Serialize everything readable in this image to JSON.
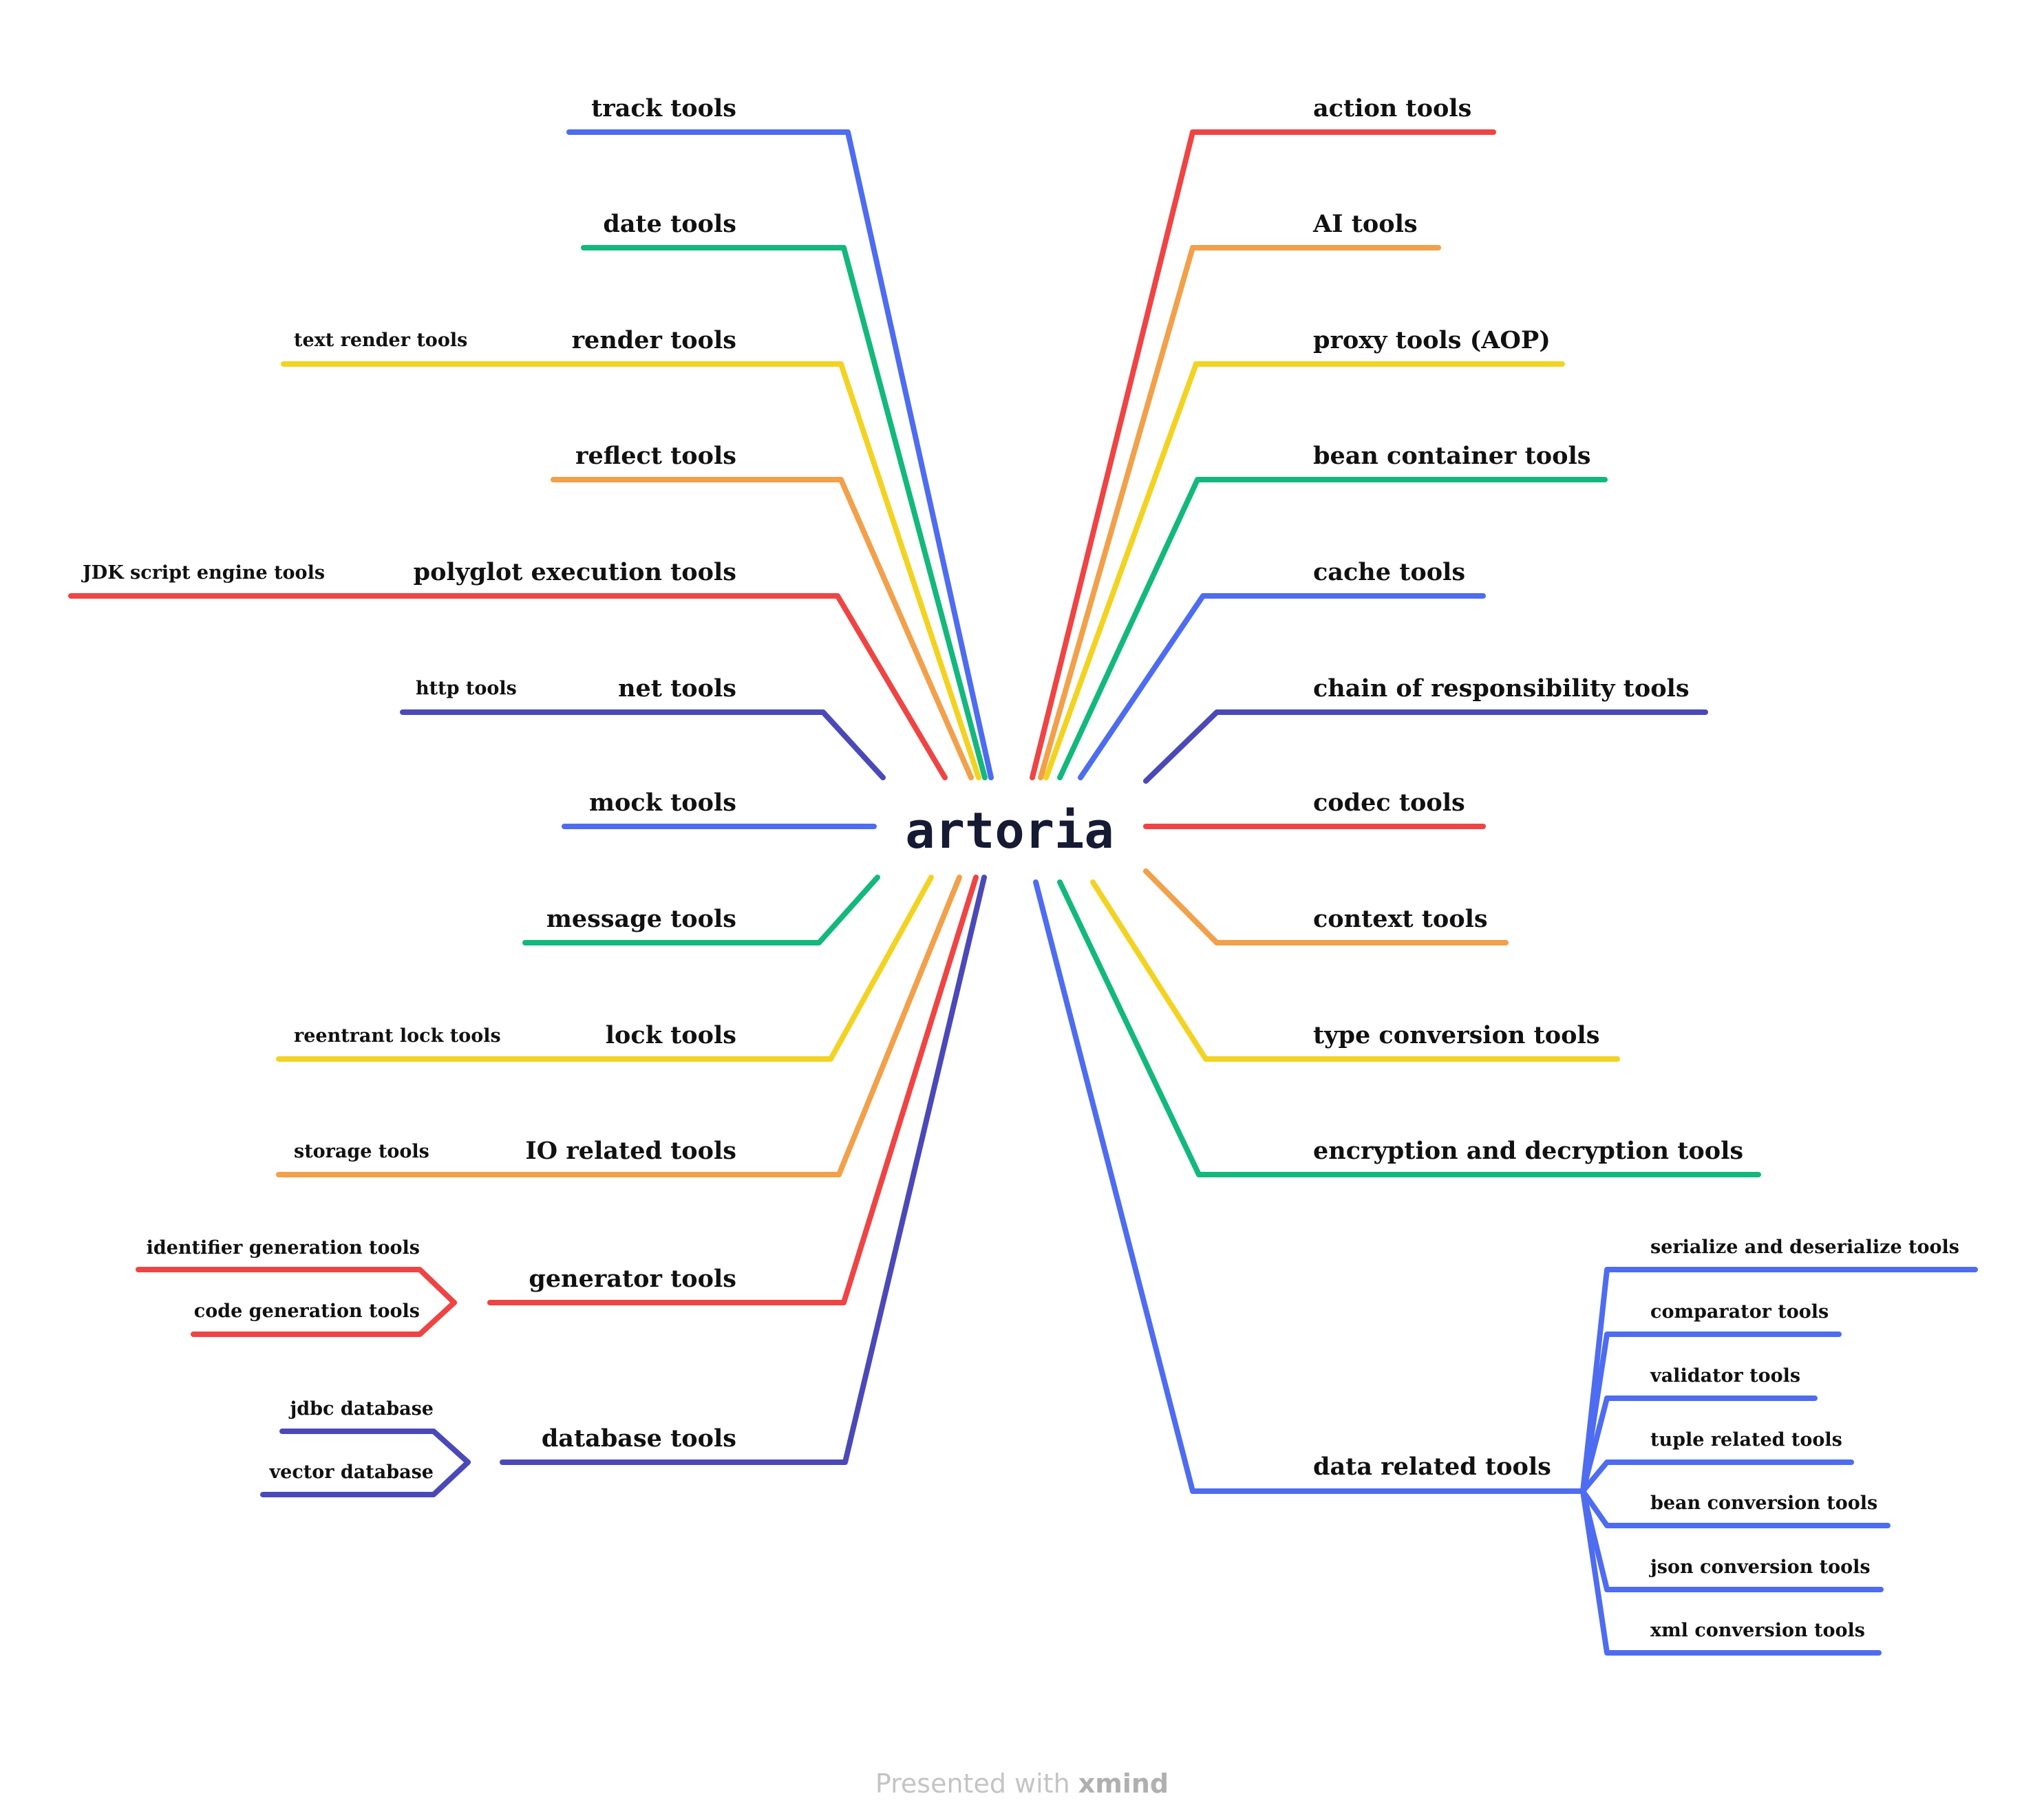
{
  "central_topic": "artoria",
  "colors": {
    "red": "#ef4444",
    "orange": "#f2a04a",
    "yellow": "#f2d322",
    "green": "#13b87c",
    "blue": "#4e6cf0",
    "indigo": "#4b49b8",
    "text": "#111111",
    "center_text": "#161a33"
  },
  "left_branches": [
    {
      "label": "track tools",
      "color": "blue",
      "children": []
    },
    {
      "label": "date tools",
      "color": "green",
      "children": []
    },
    {
      "label": "render tools",
      "color": "yellow",
      "children": [
        {
          "label": "text render tools",
          "text_color": "#5a4a00"
        }
      ]
    },
    {
      "label": "reflect tools",
      "color": "orange",
      "children": []
    },
    {
      "label": "polyglot execution tools",
      "color": "red",
      "children": [
        {
          "label": "JDK script engine tools",
          "text_color": "#7a0f0f"
        }
      ]
    },
    {
      "label": "net tools",
      "color": "indigo",
      "children": [
        {
          "label": "http tools",
          "text_color": "#1a1a5e"
        }
      ]
    },
    {
      "label": "mock tools",
      "color": "blue",
      "children": []
    },
    {
      "label": "message tools",
      "color": "green",
      "children": []
    },
    {
      "label": "lock tools",
      "color": "yellow",
      "children": [
        {
          "label": "reentrant lock tools",
          "text_color": "#5a4a00"
        }
      ]
    },
    {
      "label": "IO related tools",
      "color": "orange",
      "children": [
        {
          "label": "storage tools",
          "text_color": "#5a2f00"
        }
      ]
    },
    {
      "label": "generator tools",
      "color": "red",
      "children": [
        {
          "label": "identifier generation tools",
          "text_color": "#7a0f0f"
        },
        {
          "label": "code generation tools",
          "text_color": "#7a0f0f"
        }
      ]
    },
    {
      "label": "database tools",
      "color": "indigo",
      "children": [
        {
          "label": "jdbc database",
          "text_color": "#1a1a5e"
        },
        {
          "label": "vector database",
          "text_color": "#1a1a5e"
        }
      ]
    }
  ],
  "right_branches": [
    {
      "label": "action tools",
      "color": "red",
      "children": []
    },
    {
      "label": "AI tools",
      "color": "orange",
      "children": []
    },
    {
      "label": "proxy tools (AOP)",
      "color": "yellow",
      "children": []
    },
    {
      "label": "bean container tools",
      "color": "green",
      "children": []
    },
    {
      "label": "cache tools",
      "color": "blue",
      "children": []
    },
    {
      "label": "chain of responsibility tools",
      "color": "indigo",
      "children": []
    },
    {
      "label": "codec tools",
      "color": "red",
      "children": []
    },
    {
      "label": "context tools",
      "color": "orange",
      "children": []
    },
    {
      "label": "type conversion tools",
      "color": "yellow",
      "children": []
    },
    {
      "label": "encryption and decryption tools",
      "color": "green",
      "children": []
    },
    {
      "label": "data related tools",
      "color": "blue",
      "children": [
        {
          "label": "serialize and deserialize tools",
          "text_color": "#10185e"
        },
        {
          "label": "comparator tools",
          "text_color": "#10185e"
        },
        {
          "label": "validator tools",
          "text_color": "#10185e"
        },
        {
          "label": "tuple related tools",
          "text_color": "#10185e"
        },
        {
          "label": "bean conversion tools",
          "text_color": "#10185e"
        },
        {
          "label": "json conversion tools",
          "text_color": "#10185e"
        },
        {
          "label": "xml conversion tools",
          "text_color": "#10185e"
        }
      ]
    }
  ],
  "watermark": {
    "prefix": "Presented with ",
    "brand": "xmind"
  }
}
